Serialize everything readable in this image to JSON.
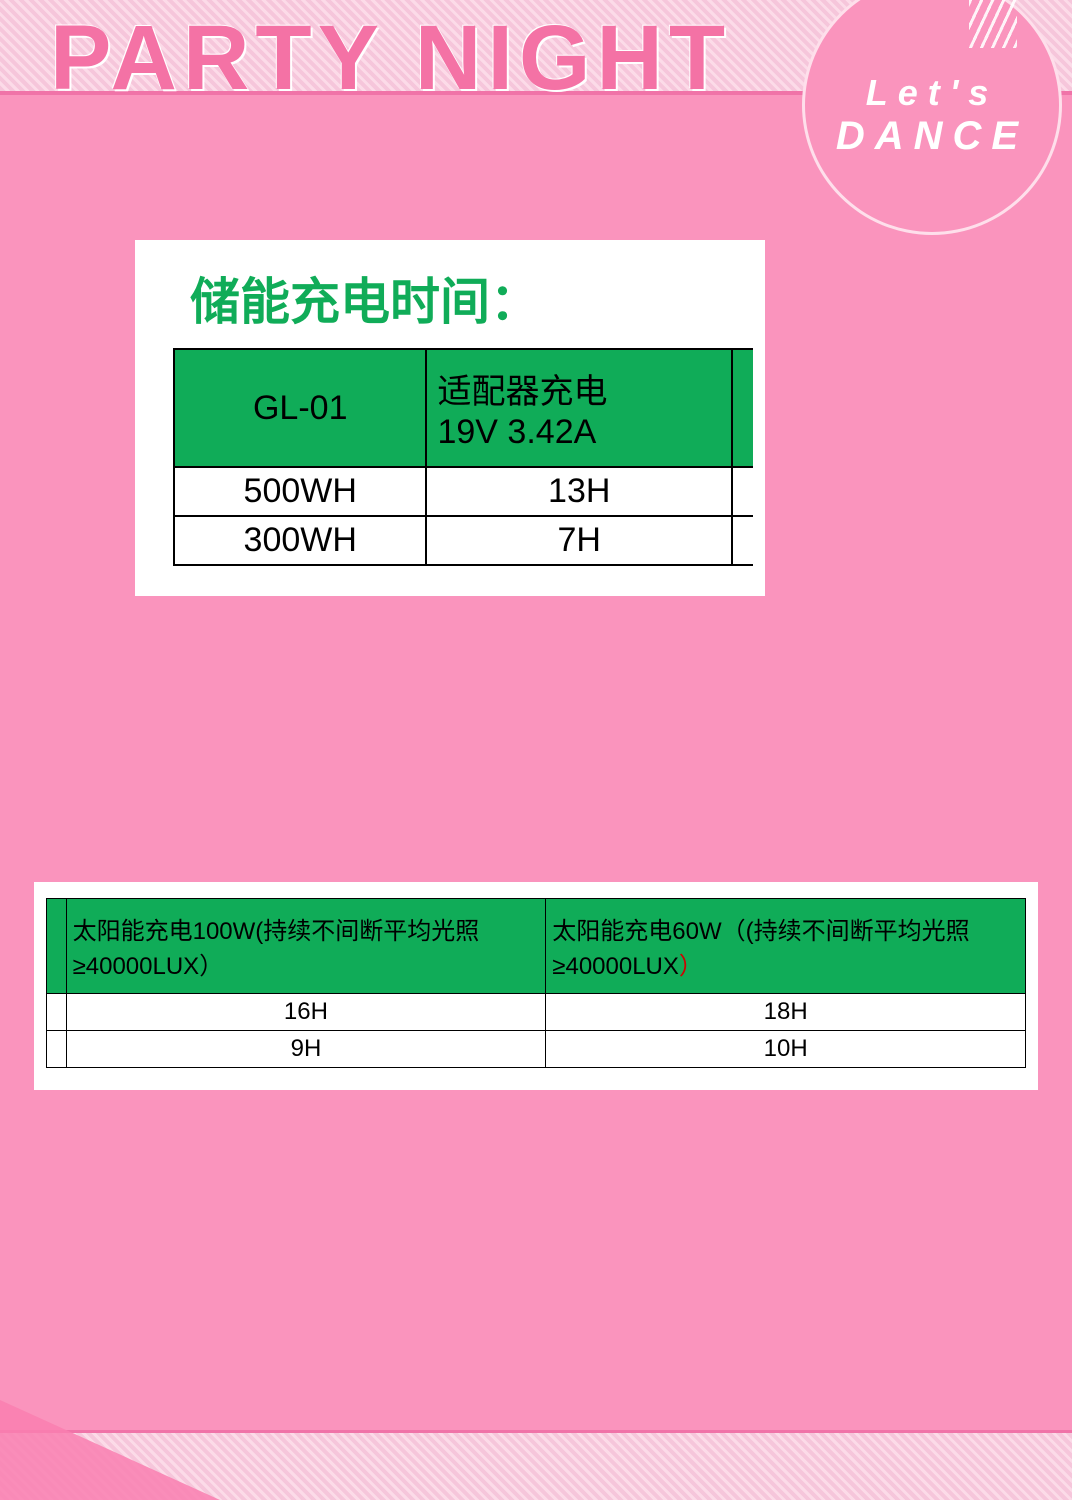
{
  "banner": {
    "title": "PARTY NIGHT",
    "badge_line1": "Let's",
    "badge_line2": "DANCE"
  },
  "colors": {
    "page_bg": "#fa94bd",
    "stripe_light": "#fcdbe8",
    "stripe_dark": "#f6c6db",
    "accent_line": "#f073a8",
    "title_pink": "#f472a5",
    "table_header_bg": "#10ac58",
    "table_title_color": "#10ac58",
    "table_border": "#000000",
    "white": "#ffffff"
  },
  "table1": {
    "title": "储能充电时间：",
    "title_fontsize": 50,
    "header_bg": "#10ac58",
    "header_text_color": "#000000",
    "cell_fontsize": 34,
    "columns": [
      {
        "label": "GL-01",
        "align": "center"
      },
      {
        "label": "适配器充电\n19V 3.42A",
        "align": "left"
      }
    ],
    "rows": [
      [
        "500WH",
        "13H"
      ],
      [
        "300WH",
        "7H"
      ]
    ]
  },
  "table2": {
    "header_bg": "#10ac58",
    "cell_fontsize": 24,
    "columns": [
      {
        "label_pre": "太阳能充电100W(持续不间断平均光照≥40000LUX",
        "label_close": "）"
      },
      {
        "label_pre": "太阳能充电60W（(持续不间断平均光照≥40000LUX",
        "label_close": "）",
        "close_color": "#d00000"
      }
    ],
    "rows": [
      [
        "16H",
        "18H"
      ],
      [
        "9H",
        "10H"
      ]
    ]
  }
}
